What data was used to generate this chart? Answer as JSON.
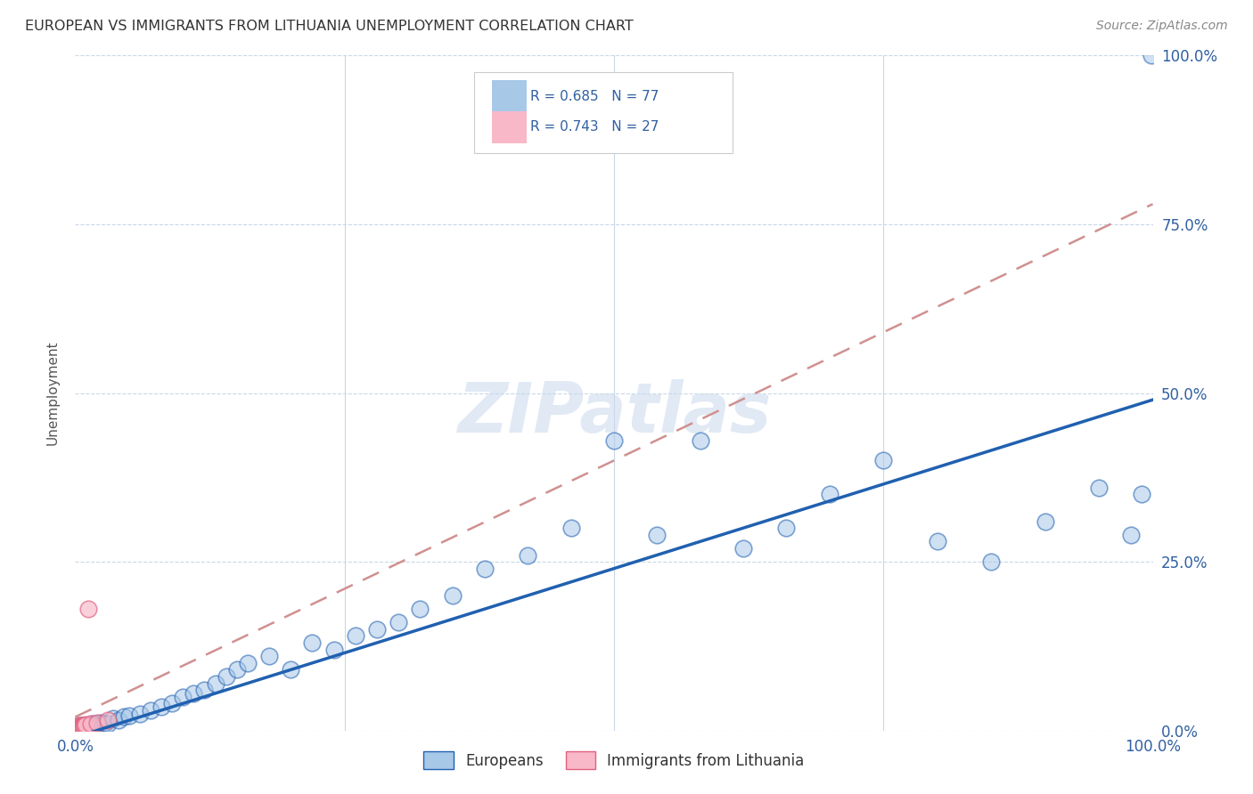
{
  "title": "EUROPEAN VS IMMIGRANTS FROM LITHUANIA UNEMPLOYMENT CORRELATION CHART",
  "source": "Source: ZipAtlas.com",
  "ylabel": "Unemployment",
  "ytick_labels": [
    "0.0%",
    "25.0%",
    "50.0%",
    "75.0%",
    "100.0%"
  ],
  "ytick_values": [
    0.0,
    0.25,
    0.5,
    0.75,
    1.0
  ],
  "xtick_values": [
    0.0,
    0.25,
    0.5,
    0.75,
    1.0
  ],
  "xtick_labels": [
    "0.0%",
    "",
    "",
    "",
    "100.0%"
  ],
  "xlim": [
    0.0,
    1.0
  ],
  "ylim": [
    0.0,
    1.0
  ],
  "blue_color": "#a8c8e8",
  "blue_line_color": "#2060b0",
  "pink_color": "#f8b8c8",
  "pink_line_color": "#e06080",
  "pink_dash_color": "#d09090",
  "grid_color": "#c8d8e8",
  "background_color": "#ffffff",
  "watermark_text": "ZIPatlas",
  "legend_R_blue": "R = 0.685",
  "legend_N_blue": "N = 77",
  "legend_R_pink": "R = 0.743",
  "legend_N_pink": "N = 27",
  "legend_label_blue": "Europeans",
  "legend_label_pink": "Immigrants from Lithuania",
  "blue_R": 0.685,
  "blue_N": 77,
  "pink_R": 0.743,
  "pink_N": 27,
  "blue_slope": 0.5,
  "blue_intercept": -0.01,
  "pink_slope": 0.76,
  "pink_intercept": 0.02,
  "blue_x": [
    0.002,
    0.003,
    0.003,
    0.004,
    0.004,
    0.004,
    0.005,
    0.005,
    0.006,
    0.006,
    0.007,
    0.007,
    0.007,
    0.008,
    0.008,
    0.009,
    0.009,
    0.01,
    0.01,
    0.011,
    0.012,
    0.012,
    0.013,
    0.014,
    0.015,
    0.015,
    0.016,
    0.017,
    0.018,
    0.019,
    0.02,
    0.022,
    0.024,
    0.026,
    0.028,
    0.03,
    0.035,
    0.04,
    0.045,
    0.05,
    0.06,
    0.07,
    0.08,
    0.09,
    0.1,
    0.11,
    0.12,
    0.13,
    0.14,
    0.15,
    0.16,
    0.18,
    0.2,
    0.22,
    0.24,
    0.26,
    0.28,
    0.3,
    0.32,
    0.35,
    0.38,
    0.42,
    0.46,
    0.5,
    0.54,
    0.58,
    0.62,
    0.66,
    0.7,
    0.75,
    0.8,
    0.85,
    0.9,
    0.95,
    0.98,
    0.99,
    0.999
  ],
  "blue_y": [
    0.005,
    0.003,
    0.006,
    0.004,
    0.007,
    0.003,
    0.005,
    0.004,
    0.006,
    0.003,
    0.008,
    0.005,
    0.007,
    0.006,
    0.004,
    0.007,
    0.003,
    0.008,
    0.005,
    0.006,
    0.007,
    0.004,
    0.008,
    0.006,
    0.009,
    0.005,
    0.01,
    0.007,
    0.008,
    0.006,
    0.01,
    0.008,
    0.012,
    0.01,
    0.012,
    0.01,
    0.018,
    0.015,
    0.02,
    0.022,
    0.025,
    0.03,
    0.035,
    0.04,
    0.05,
    0.055,
    0.06,
    0.07,
    0.08,
    0.09,
    0.1,
    0.11,
    0.09,
    0.13,
    0.12,
    0.14,
    0.15,
    0.16,
    0.18,
    0.2,
    0.24,
    0.26,
    0.3,
    0.43,
    0.29,
    0.43,
    0.27,
    0.3,
    0.35,
    0.4,
    0.28,
    0.25,
    0.31,
    0.36,
    0.29,
    0.35,
    1.0
  ],
  "pink_x": [
    0.001,
    0.001,
    0.001,
    0.002,
    0.002,
    0.002,
    0.002,
    0.003,
    0.003,
    0.003,
    0.003,
    0.004,
    0.004,
    0.004,
    0.005,
    0.005,
    0.006,
    0.006,
    0.007,
    0.007,
    0.008,
    0.009,
    0.01,
    0.012,
    0.015,
    0.02,
    0.03
  ],
  "pink_y": [
    0.002,
    0.004,
    0.003,
    0.005,
    0.003,
    0.006,
    0.004,
    0.005,
    0.003,
    0.006,
    0.004,
    0.005,
    0.003,
    0.007,
    0.006,
    0.004,
    0.007,
    0.005,
    0.008,
    0.006,
    0.007,
    0.008,
    0.009,
    0.18,
    0.01,
    0.012,
    0.015
  ]
}
